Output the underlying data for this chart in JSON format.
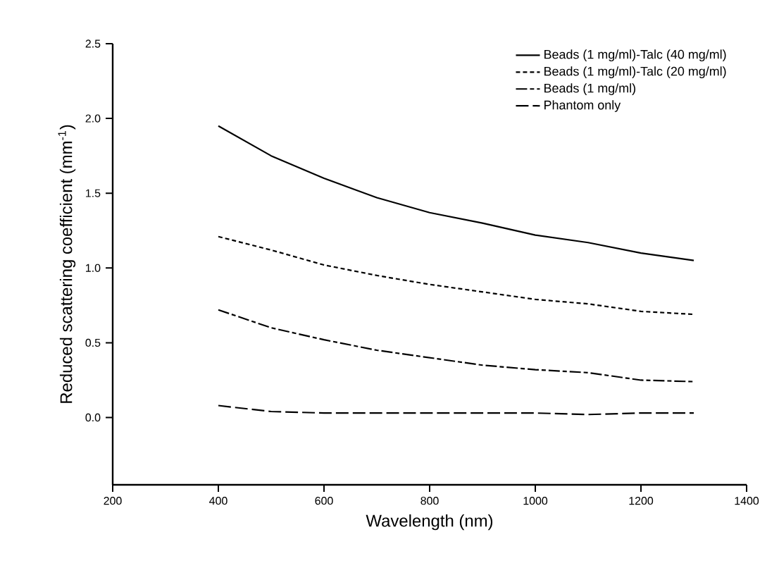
{
  "chart_data": {
    "type": "line",
    "xlabel": "Wavelength (nm)",
    "ylabel": "Reduced scattering coefficient (mm$^{-1}$)",
    "xlim": [
      200,
      1400
    ],
    "xticks": [
      200,
      400,
      600,
      800,
      1000,
      1200,
      1400
    ],
    "ylim": [
      -0.45,
      2.5
    ],
    "yticks": [
      {
        "value": 0,
        "label": "0.0"
      },
      0.5,
      {
        "value": 1,
        "label": "1.0"
      },
      1.5,
      {
        "value": 2,
        "label": "2.0"
      },
      2.5
    ],
    "x": [
      400,
      500,
      600,
      700,
      800,
      900,
      1000,
      1100,
      1200,
      1300
    ],
    "series": [
      {
        "name": "Beads (1 mg/ml)-Talc (40 mg/ml)",
        "color": "#000000",
        "line_style": "solid",
        "values": [
          1.95,
          1.75,
          1.6,
          1.47,
          1.37,
          1.3,
          1.22,
          1.17,
          1.1,
          1.05
        ]
      },
      {
        "name": "Beads (1 mg/ml)-Talc (20 mg/ml)",
        "color": "#000000",
        "line_style": "dotted",
        "values": [
          1.21,
          1.12,
          1.02,
          0.95,
          0.89,
          0.84,
          0.79,
          0.76,
          0.71,
          0.69
        ]
      },
      {
        "name": "Beads (1 mg/ml)",
        "color": "#000000",
        "line_style": "dashdot",
        "values": [
          0.72,
          0.6,
          0.52,
          0.45,
          0.4,
          0.35,
          0.32,
          0.3,
          0.25,
          0.24
        ]
      },
      {
        "name": "Phantom only",
        "color": "#000000",
        "line_style": "dashed",
        "values": [
          0.08,
          0.04,
          0.03,
          0.03,
          0.03,
          0.03,
          0.03,
          0.02,
          0.03,
          0.03
        ]
      }
    ],
    "legend": "top right",
    "grid": false,
    "marker": "none"
  }
}
